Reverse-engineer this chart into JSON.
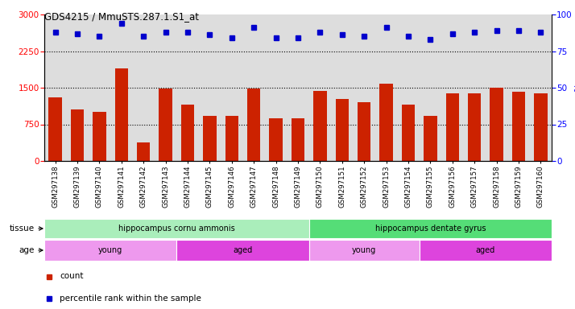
{
  "title": "GDS4215 / MmuSTS.287.1.S1_at",
  "samples": [
    "GSM297138",
    "GSM297139",
    "GSM297140",
    "GSM297141",
    "GSM297142",
    "GSM297143",
    "GSM297144",
    "GSM297145",
    "GSM297146",
    "GSM297147",
    "GSM297148",
    "GSM297149",
    "GSM297150",
    "GSM297151",
    "GSM297152",
    "GSM297153",
    "GSM297154",
    "GSM297155",
    "GSM297156",
    "GSM297157",
    "GSM297158",
    "GSM297159",
    "GSM297160"
  ],
  "counts": [
    1300,
    1050,
    1000,
    1900,
    380,
    1480,
    1150,
    920,
    920,
    1490,
    870,
    870,
    1430,
    1270,
    1200,
    1580,
    1150,
    920,
    1380,
    1380,
    1500,
    1420,
    1380
  ],
  "percentiles": [
    88,
    87,
    85,
    94,
    85,
    88,
    88,
    86,
    84,
    91,
    84,
    84,
    88,
    86,
    85,
    91,
    85,
    83,
    87,
    88,
    89,
    89,
    88
  ],
  "ylim_left": [
    0,
    3000
  ],
  "ylim_right": [
    0,
    100
  ],
  "yticks_left": [
    0,
    750,
    1500,
    2250,
    3000
  ],
  "yticks_right": [
    0,
    25,
    50,
    75,
    100
  ],
  "bar_color": "#cc2200",
  "dot_color": "#0000cc",
  "tissue_groups": [
    {
      "label": "hippocampus cornu ammonis",
      "start": 0,
      "end": 12,
      "color": "#aaeebb"
    },
    {
      "label": "hippocampus dentate gyrus",
      "start": 12,
      "end": 23,
      "color": "#55dd77"
    }
  ],
  "age_groups": [
    {
      "label": "young",
      "start": 0,
      "end": 6,
      "color": "#ee99ee"
    },
    {
      "label": "aged",
      "start": 6,
      "end": 12,
      "color": "#dd44dd"
    },
    {
      "label": "young",
      "start": 12,
      "end": 17,
      "color": "#ee99ee"
    },
    {
      "label": "aged",
      "start": 17,
      "end": 23,
      "color": "#dd44dd"
    }
  ],
  "legend_count_label": "count",
  "legend_percentile_label": "percentile rank within the sample",
  "tissue_label": "tissue",
  "age_label": "age",
  "chart_bg": "#dddddd"
}
